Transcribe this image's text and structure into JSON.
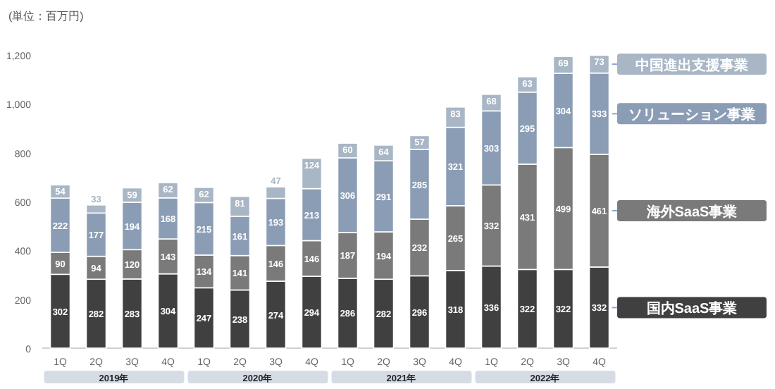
{
  "chart_data": {
    "type": "bar",
    "stacked": true,
    "ylabel": "(単位：百万円)",
    "categories": [
      "1Q",
      "2Q",
      "3Q",
      "4Q",
      "1Q",
      "2Q",
      "3Q",
      "4Q",
      "1Q",
      "2Q",
      "3Q",
      "4Q",
      "1Q",
      "2Q",
      "3Q",
      "4Q"
    ],
    "series": [
      {
        "name": "国内SaaS事業",
        "color": "#404040",
        "values": [
          302,
          282,
          283,
          304,
          247,
          238,
          274,
          294,
          286,
          282,
          296,
          318,
          336,
          322,
          322,
          332
        ]
      },
      {
        "name": "海外SaaS事業",
        "color": "#7a7a7a",
        "values": [
          90,
          94,
          120,
          143,
          134,
          141,
          146,
          146,
          187,
          194,
          232,
          265,
          332,
          431,
          499,
          461
        ]
      },
      {
        "name": "ソリューション事業",
        "color": "#8a9db5",
        "values": [
          222,
          177,
          194,
          168,
          215,
          161,
          193,
          213,
          306,
          291,
          285,
          321,
          303,
          295,
          304,
          333
        ]
      },
      {
        "name": "中国進出支援事業",
        "color": "#a8b6c6",
        "values": [
          54,
          33,
          59,
          62,
          62,
          81,
          47,
          124,
          60,
          64,
          57,
          83,
          68,
          63,
          69,
          73
        ]
      }
    ],
    "ylim": [
      0,
      1200
    ],
    "yticks": [
      0,
      200,
      400,
      600,
      800,
      {
        "value": 1000,
        "label": "1,000"
      },
      {
        "value": 1200,
        "label": "1,200"
      }
    ],
    "data_labels": true,
    "legend": "right",
    "grid": false,
    "annotations": [
      "2019年",
      "2020年",
      "2021年",
      "2022年"
    ]
  }
}
